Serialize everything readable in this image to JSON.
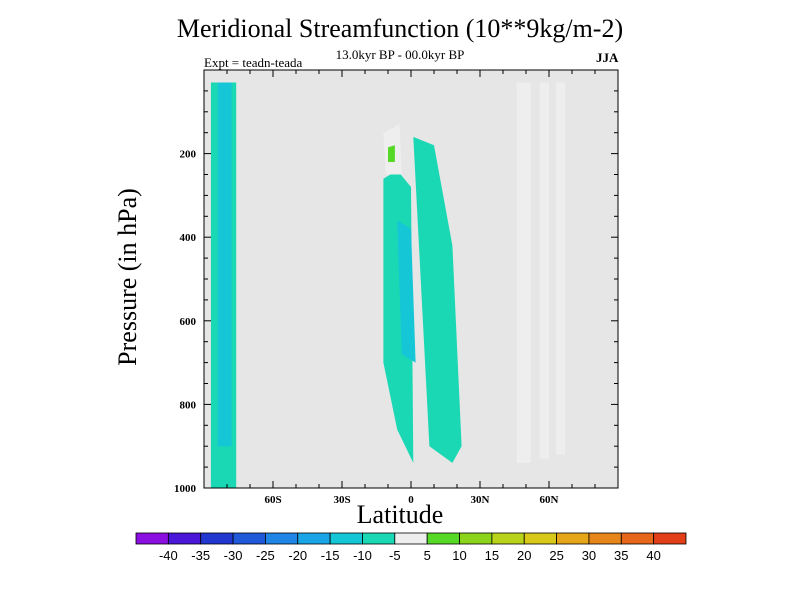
{
  "chart_data": {
    "type": "heatmap",
    "title": "Meridional Streamfunction (10**9kg/m-2)",
    "subtitle": "13.0kyr BP - 00.0kyr BP",
    "left_note": "Expt = teadn-teada",
    "right_note": "JJA",
    "xlabel": "Latitude",
    "ylabel": "Pressure (in hPa)",
    "xlim": [
      -90,
      90
    ],
    "ylim": [
      1000,
      0
    ],
    "x_ticks": [
      {
        "value": -60,
        "label": "60S"
      },
      {
        "value": -30,
        "label": "30S"
      },
      {
        "value": 0,
        "label": "0"
      },
      {
        "value": 30,
        "label": "30N"
      },
      {
        "value": 60,
        "label": "60N"
      }
    ],
    "y_ticks": [
      {
        "value": 200,
        "label": "200"
      },
      {
        "value": 400,
        "label": "400"
      },
      {
        "value": 600,
        "label": "600"
      },
      {
        "value": 800,
        "label": "800"
      },
      {
        "value": 1000,
        "label": "1000"
      }
    ],
    "colorbar": {
      "labels": [
        "-40",
        "-35",
        "-30",
        "-25",
        "-20",
        "-15",
        "-10",
        "-5",
        "5",
        "10",
        "15",
        "20",
        "25",
        "30",
        "35",
        "40"
      ],
      "colors": [
        "#8a0fe0",
        "#4a16d8",
        "#2236d0",
        "#1f58d8",
        "#1f86e6",
        "#1aa6e6",
        "#14c6d6",
        "#1ad8b4",
        "#eeeeee",
        "#56d826",
        "#8cd31c",
        "#b8d31a",
        "#d8c81a",
        "#e6a61a",
        "#e6861a",
        "#e6661a",
        "#e23e18"
      ],
      "zero_band_color": "#e6e6e6"
    },
    "regions": [
      {
        "name": "sh-cell-outer",
        "level": -10,
        "points": [
          [
            -87,
            30
          ],
          [
            -76,
            30
          ],
          [
            -76,
            1000
          ],
          [
            -87,
            1000
          ]
        ]
      },
      {
        "name": "sh-cell-core",
        "level": -15,
        "points": [
          [
            -84,
            30
          ],
          [
            -78,
            30
          ],
          [
            -78,
            900
          ],
          [
            -84,
            900
          ]
        ]
      },
      {
        "name": "tropical-cell-a",
        "level": -10,
        "points": [
          [
            -12,
            260
          ],
          [
            -6,
            240
          ],
          [
            0,
            280
          ],
          [
            1,
            940
          ],
          [
            -6,
            860
          ],
          [
            -12,
            700
          ]
        ]
      },
      {
        "name": "tropical-cell-b",
        "level": -10,
        "points": [
          [
            1,
            160
          ],
          [
            10,
            180
          ],
          [
            18,
            420
          ],
          [
            22,
            900
          ],
          [
            18,
            940
          ],
          [
            8,
            900
          ]
        ]
      },
      {
        "name": "tropical-core",
        "level": -15,
        "points": [
          [
            -6,
            360
          ],
          [
            0,
            380
          ],
          [
            2,
            700
          ],
          [
            -4,
            680
          ]
        ]
      },
      {
        "name": "nh-band-1",
        "level": 5,
        "points": [
          [
            46,
            30
          ],
          [
            52,
            30
          ],
          [
            52,
            940
          ],
          [
            46,
            940
          ]
        ]
      },
      {
        "name": "nh-band-2",
        "level": 5,
        "points": [
          [
            56,
            30
          ],
          [
            60,
            30
          ],
          [
            60,
            930
          ],
          [
            56,
            930
          ]
        ]
      },
      {
        "name": "nh-band-3",
        "level": 5,
        "points": [
          [
            63,
            30
          ],
          [
            67,
            30
          ],
          [
            67,
            920
          ],
          [
            63,
            920
          ]
        ]
      },
      {
        "name": "tropical-plume",
        "level": 5,
        "points": [
          [
            -12,
            150
          ],
          [
            -5,
            130
          ],
          [
            -4,
            250
          ],
          [
            -11,
            250
          ]
        ]
      },
      {
        "name": "plume-core",
        "level": 10,
        "points": [
          [
            -10,
            185
          ],
          [
            -7,
            180
          ],
          [
            -7,
            220
          ],
          [
            -10,
            220
          ]
        ]
      }
    ]
  }
}
